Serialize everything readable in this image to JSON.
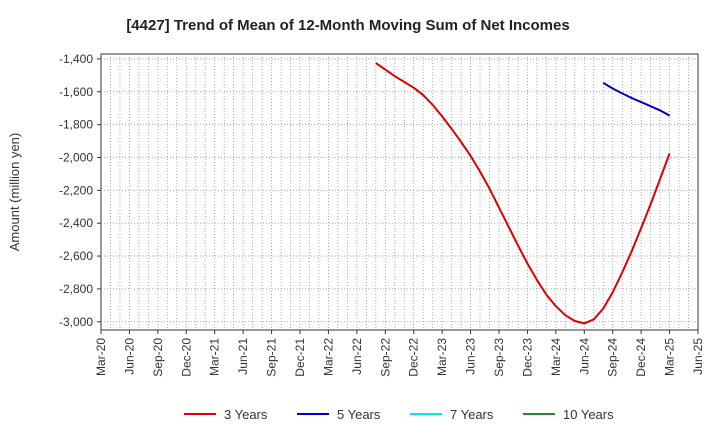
{
  "chart_data": {
    "type": "line",
    "title": "[4427]  Trend of Mean of 12-Month Moving Sum of Net Incomes",
    "ylabel": "Amount (million yen)",
    "xlabel": "",
    "ylim": [
      -3050,
      -1370
    ],
    "yticks": [
      -1400,
      -1600,
      -1800,
      -2000,
      -2200,
      -2400,
      -2600,
      -2800,
      -3000
    ],
    "ytick_labels": [
      "-1,400",
      "-1,600",
      "-1,800",
      "-2,000",
      "-2,200",
      "-2,400",
      "-2,600",
      "-2,800",
      "-3,000"
    ],
    "xticks": [
      "Mar-20",
      "Jun-20",
      "Sep-20",
      "Dec-20",
      "Mar-21",
      "Jun-21",
      "Sep-21",
      "Dec-21",
      "Mar-22",
      "Jun-22",
      "Sep-22",
      "Dec-22",
      "Mar-23",
      "Jun-23",
      "Sep-23",
      "Dec-23",
      "Mar-24",
      "Jun-24",
      "Sep-24",
      "Dec-24",
      "Mar-25",
      "Jun-25"
    ],
    "grid": true,
    "legend_position": "bottom",
    "series": [
      {
        "name": "3 Years",
        "color": "#dd0000",
        "points": [
          [
            "Aug-22",
            -1425
          ],
          [
            "Sep-22",
            -1465
          ],
          [
            "Oct-22",
            -1505
          ],
          [
            "Nov-22",
            -1540
          ],
          [
            "Dec-22",
            -1575
          ],
          [
            "Jan-23",
            -1620
          ],
          [
            "Feb-23",
            -1680
          ],
          [
            "Mar-23",
            -1750
          ],
          [
            "Apr-23",
            -1825
          ],
          [
            "May-23",
            -1905
          ],
          [
            "Jun-23",
            -1990
          ],
          [
            "Jul-23",
            -2085
          ],
          [
            "Aug-23",
            -2190
          ],
          [
            "Sep-23",
            -2305
          ],
          [
            "Oct-23",
            -2420
          ],
          [
            "Nov-23",
            -2535
          ],
          [
            "Dec-23",
            -2645
          ],
          [
            "Jan-24",
            -2745
          ],
          [
            "Feb-24",
            -2835
          ],
          [
            "Mar-24",
            -2905
          ],
          [
            "Apr-24",
            -2960
          ],
          [
            "May-24",
            -2995
          ],
          [
            "Jun-24",
            -3010
          ],
          [
            "Jul-24",
            -2985
          ],
          [
            "Aug-24",
            -2920
          ],
          [
            "Sep-24",
            -2820
          ],
          [
            "Oct-24",
            -2700
          ],
          [
            "Nov-24",
            -2570
          ],
          [
            "Dec-24",
            -2430
          ],
          [
            "Jan-25",
            -2285
          ],
          [
            "Feb-25",
            -2130
          ],
          [
            "Mar-25",
            -1975
          ]
        ]
      },
      {
        "name": "5 Years",
        "color": "#0000cc",
        "points": [
          [
            "Aug-24",
            -1545
          ],
          [
            "Sep-24",
            -1580
          ],
          [
            "Oct-24",
            -1610
          ],
          [
            "Nov-24",
            -1638
          ],
          [
            "Dec-24",
            -1663
          ],
          [
            "Jan-25",
            -1688
          ],
          [
            "Feb-25",
            -1713
          ],
          [
            "Mar-25",
            -1745
          ]
        ]
      },
      {
        "name": "7 Years",
        "color": "#00e5ee",
        "points": []
      },
      {
        "name": "10 Years",
        "color": "#228b22",
        "points": []
      }
    ]
  }
}
